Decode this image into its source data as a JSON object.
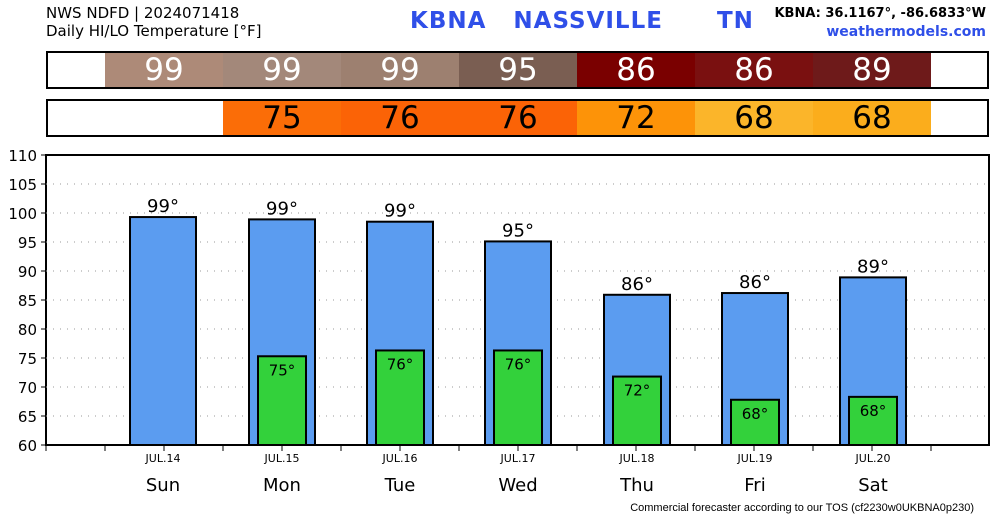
{
  "header": {
    "line1": "NWS NDFD | 2024071418",
    "line2": "Daily HI/LO Temperature [°F]",
    "station_title": "KBNA   NASSVILLE      TN",
    "coords": "KBNA: 36.1167°, -86.6833°W",
    "site": "weathermodels.com"
  },
  "footer": "Commercial forecaster according to our TOS (cf2230w0UKBNA0p230)",
  "hi_strip": {
    "cells": [
      {
        "label": "99",
        "color": "#ad8a78"
      },
      {
        "label": "99",
        "color": "#a3887a"
      },
      {
        "label": "99",
        "color": "#9d8070"
      },
      {
        "label": "95",
        "color": "#7a5e52"
      },
      {
        "label": "86",
        "color": "#7a0000"
      },
      {
        "label": "86",
        "color": "#7a1010"
      },
      {
        "label": "89",
        "color": "#6e1a1a"
      }
    ]
  },
  "lo_strip": {
    "cells": [
      {
        "label": "",
        "color": "#ffffff"
      },
      {
        "label": "75",
        "color": "#fb6d07"
      },
      {
        "label": "76",
        "color": "#fb6306"
      },
      {
        "label": "76",
        "color": "#fb6306"
      },
      {
        "label": "72",
        "color": "#fd9308"
      },
      {
        "label": "68",
        "color": "#fbb52a"
      },
      {
        "label": "68",
        "color": "#fbad1c"
      }
    ]
  },
  "chart_data": {
    "type": "bar",
    "dates": [
      "JUL.14",
      "JUL.15",
      "JUL.16",
      "JUL.17",
      "JUL.18",
      "JUL.19",
      "JUL.20"
    ],
    "categories": [
      "Sun",
      "Mon",
      "Tue",
      "Wed",
      "Thu",
      "Fri",
      "Sat"
    ],
    "series": [
      {
        "values": [
          99.3,
          98.9,
          98.5,
          95.1,
          85.9,
          86.2,
          88.9
        ],
        "labels": [
          "99°",
          "99°",
          "99°",
          "95°",
          "86°",
          "86°",
          "89°"
        ],
        "color": "#5b9cf0"
      },
      {
        "values": [
          null,
          75.3,
          76.3,
          76.3,
          71.8,
          67.8,
          68.3
        ],
        "labels": [
          "",
          "75°",
          "76°",
          "76°",
          "72°",
          "68°",
          "68°"
        ],
        "color": "#33d13b"
      }
    ],
    "yticks": [
      "60",
      "65",
      "70",
      "75",
      "80",
      "85",
      "90",
      "95",
      "100",
      "105",
      "110"
    ],
    "ylim": [
      60,
      110
    ],
    "grid": true
  }
}
